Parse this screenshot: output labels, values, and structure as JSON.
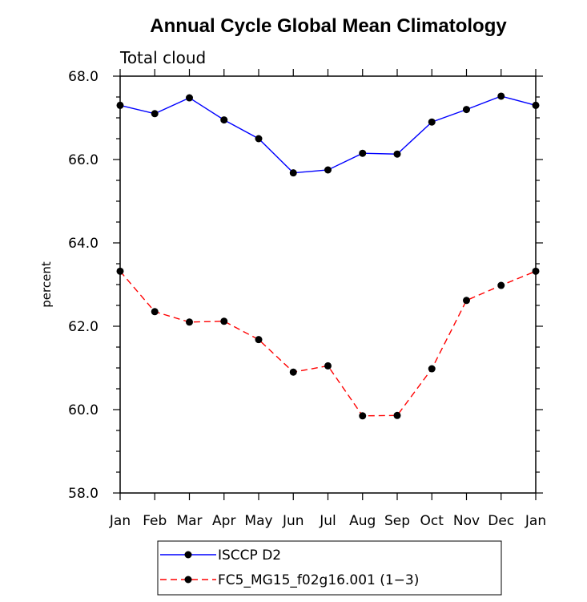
{
  "chart_data": {
    "type": "line",
    "title": "Annual Cycle Global Mean Climatology",
    "subtitle": "Total cloud",
    "xlabel": "",
    "ylabel": "percent",
    "categories": [
      "Jan",
      "Feb",
      "Mar",
      "Apr",
      "May",
      "Jun",
      "Jul",
      "Aug",
      "Sep",
      "Oct",
      "Nov",
      "Dec",
      "Jan"
    ],
    "ylim": [
      58.0,
      68.0
    ],
    "yticks": [
      "58.0",
      "60.0",
      "62.0",
      "64.0",
      "66.0",
      "68.0"
    ],
    "grid": false,
    "legend_position": "bottom",
    "series": [
      {
        "name": "ISCCP D2",
        "color": "#0000ff",
        "line_style": "solid",
        "marker": "circle",
        "values": [
          67.3,
          67.1,
          67.48,
          66.95,
          66.5,
          65.68,
          65.75,
          66.15,
          66.13,
          66.9,
          67.2,
          67.52,
          67.3
        ]
      },
      {
        "name": "FC5_MG15_f02g16.001 (1−3)",
        "color": "#ff0000",
        "line_style": "dashed",
        "marker": "circle",
        "values": [
          63.32,
          62.35,
          62.1,
          62.12,
          61.68,
          60.9,
          61.05,
          59.85,
          59.86,
          60.98,
          62.62,
          62.98,
          63.32
        ]
      }
    ]
  }
}
